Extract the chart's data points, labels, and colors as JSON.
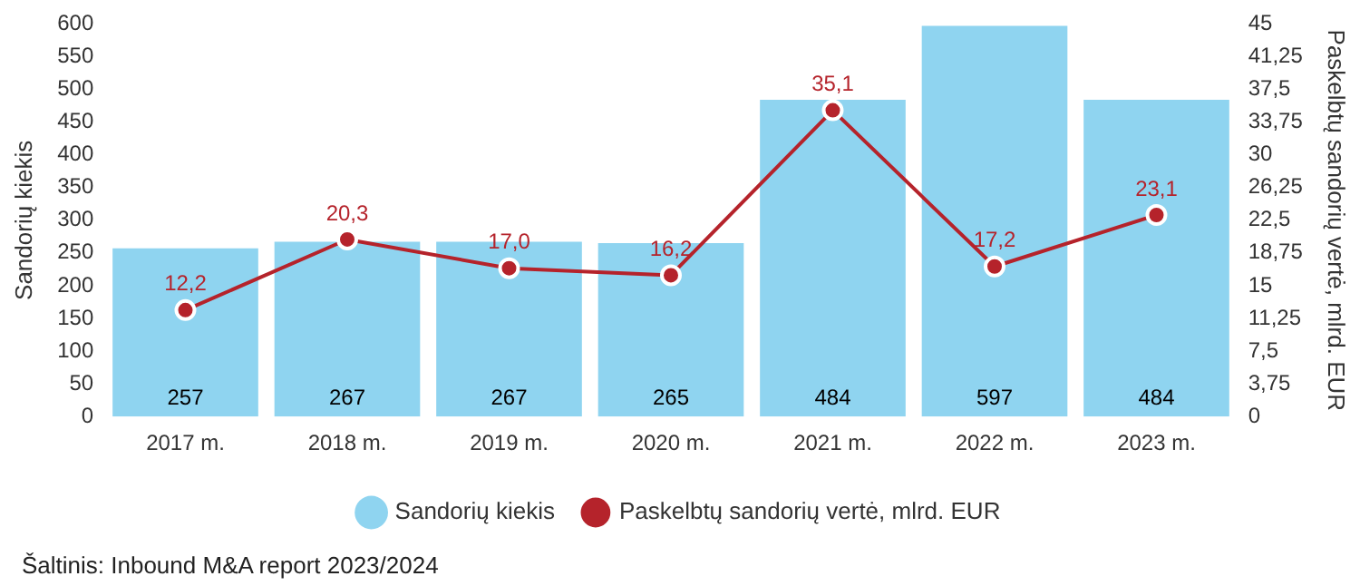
{
  "chart_data": {
    "type": "bar",
    "categories": [
      "2017 m.",
      "2018 m.",
      "2019 m.",
      "2020 m.",
      "2021 m.",
      "2022 m.",
      "2023 m."
    ],
    "series": [
      {
        "name": "Sandorių kiekis",
        "color": "#8fd4f0",
        "values": [
          257,
          267,
          267,
          265,
          484,
          597,
          484
        ],
        "value_labels": [
          "257",
          "267",
          "267",
          "265",
          "484",
          "597",
          "484"
        ]
      },
      {
        "name": "Paskelbtų sandorių vertė, mlrd. EUR",
        "type": "line",
        "axis": "y2",
        "color": "#b5232b",
        "values": [
          12.2,
          20.3,
          17.0,
          16.2,
          35.1,
          17.2,
          23.1
        ],
        "value_labels": [
          "12,2",
          "20,3",
          "17,0",
          "16,2",
          "35,1",
          "17,2",
          "23,1"
        ]
      }
    ],
    "ylabel": "Sandorių kiekis",
    "y2label": "Paskelbtų sandorių vertė, mlrd. EUR",
    "ylim": [
      0,
      600
    ],
    "yticks": [
      0,
      50,
      100,
      150,
      200,
      250,
      300,
      350,
      400,
      450,
      500,
      550,
      600
    ],
    "y2lim": [
      0,
      45
    ],
    "y2ticks": [
      0,
      {
        "value": 3.75,
        "label": "3,75"
      },
      {
        "value": 7.5,
        "label": "7,5"
      },
      {
        "value": 11.25,
        "label": "11,25"
      },
      15,
      {
        "value": 18.75,
        "label": "18,75"
      },
      {
        "value": 22.5,
        "label": "22,5"
      },
      {
        "value": 26.25,
        "label": "26,25"
      },
      30,
      {
        "value": 33.75,
        "label": "33,75"
      },
      {
        "value": 37.5,
        "label": "37,5"
      },
      {
        "value": 41.25,
        "label": "41,25"
      },
      45
    ],
    "grid": false,
    "legend": "bottom",
    "marker": "circle",
    "annotations": [
      "Šaltinis: Inbound M&A report 2023/2024"
    ]
  }
}
